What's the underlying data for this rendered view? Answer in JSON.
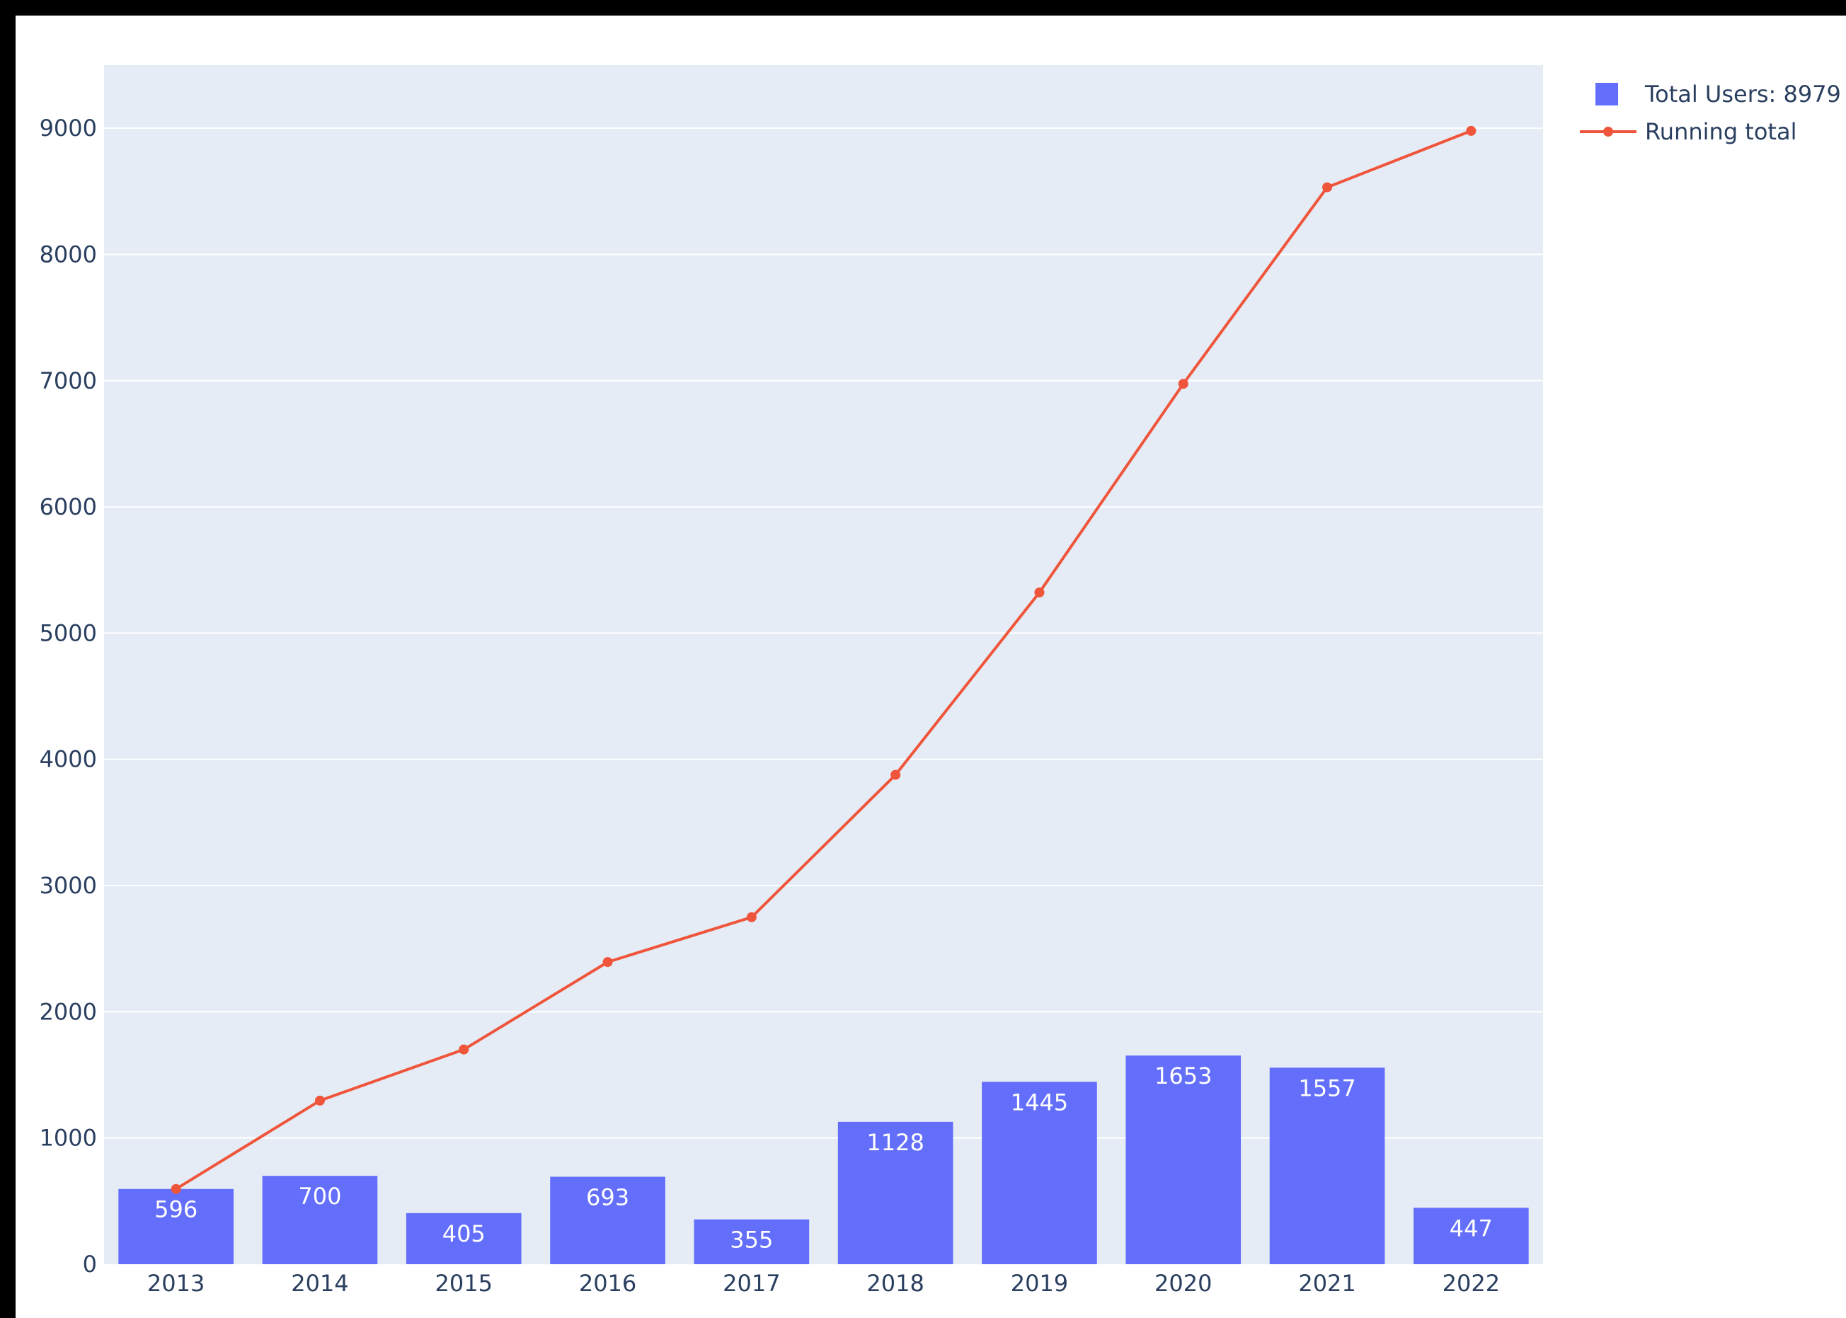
{
  "chart_data": {
    "type": "bar",
    "title": "",
    "xlabel": "",
    "ylabel": "",
    "categories": [
      "2013",
      "2014",
      "2015",
      "2016",
      "2017",
      "2018",
      "2019",
      "2020",
      "2021",
      "2022"
    ],
    "series": [
      {
        "name": "Total Users: 8979",
        "type": "bar",
        "values": [
          596,
          700,
          405,
          693,
          355,
          1128,
          1445,
          1653,
          1557,
          447
        ],
        "color": "#636efa",
        "data_labels": [
          "596",
          "700",
          "405",
          "693",
          "355",
          "1128",
          "1445",
          "1653",
          "1557",
          "447"
        ]
      },
      {
        "name": "Running total",
        "type": "line",
        "values": [
          596,
          1296,
          1701,
          2394,
          2749,
          3877,
          5322,
          6975,
          8532,
          8979
        ],
        "color": "#ef553b"
      }
    ],
    "ylim": [
      0,
      9500
    ],
    "yticks": [
      "0",
      "1000",
      "2000",
      "3000",
      "4000",
      "5000",
      "6000",
      "7000",
      "8000",
      "9000"
    ],
    "grid": true,
    "plot_background": "#e5ecf6",
    "legend_position": "top-right"
  }
}
